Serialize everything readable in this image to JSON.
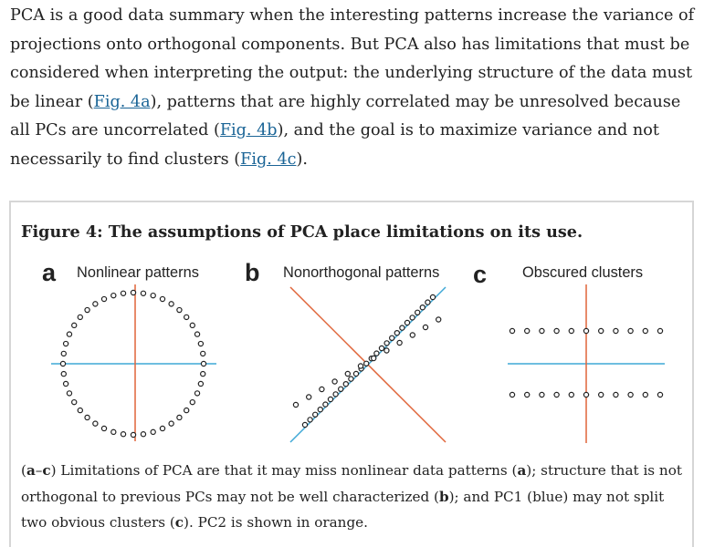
{
  "intro": {
    "t1": "PCA is a good data summary when the interesting patterns increase the variance of projections onto orthogonal components. But PCA also has limitations that must be considered when interpreting the output: the underlying structure of the data must be linear (",
    "link_a": "Fig. 4a",
    "t2": "), patterns that are highly correlated may be unresolved because all PCs are uncorrelated (",
    "link_b": "Fig. 4b",
    "t3": "), and the goal is to maximize variance and not necessarily to find clusters (",
    "link_c": "Fig. 4c",
    "t4": ")."
  },
  "figure": {
    "title": "Figure 4: The assumptions of PCA place limitations on its use.",
    "panels": [
      {
        "letter": "a",
        "title": "Nonlinear patterns"
      },
      {
        "letter": "b",
        "title": "Nonorthogonal patterns"
      },
      {
        "letter": "c",
        "title": "Obscured clusters"
      }
    ],
    "colors": {
      "pc1": "#3fa8d6",
      "pc2": "#e0653a",
      "points": "#222222",
      "border": "#d6d6d6",
      "link": "#1a6496"
    },
    "caption": {
      "p1": "(",
      "b1": "a",
      "p2": "–",
      "b2": "c",
      "p3": ") Limitations of PCA are that it may miss nonlinear data patterns (",
      "b3": "a",
      "p4": "); structure that is not orthogonal to previous PCs may not be well characterized (",
      "b4": "b",
      "p5": "); and PC1 (blue) may not split two obvious clusters (",
      "b5": "c",
      "p6": "). PC2 is shown in orange."
    }
  }
}
